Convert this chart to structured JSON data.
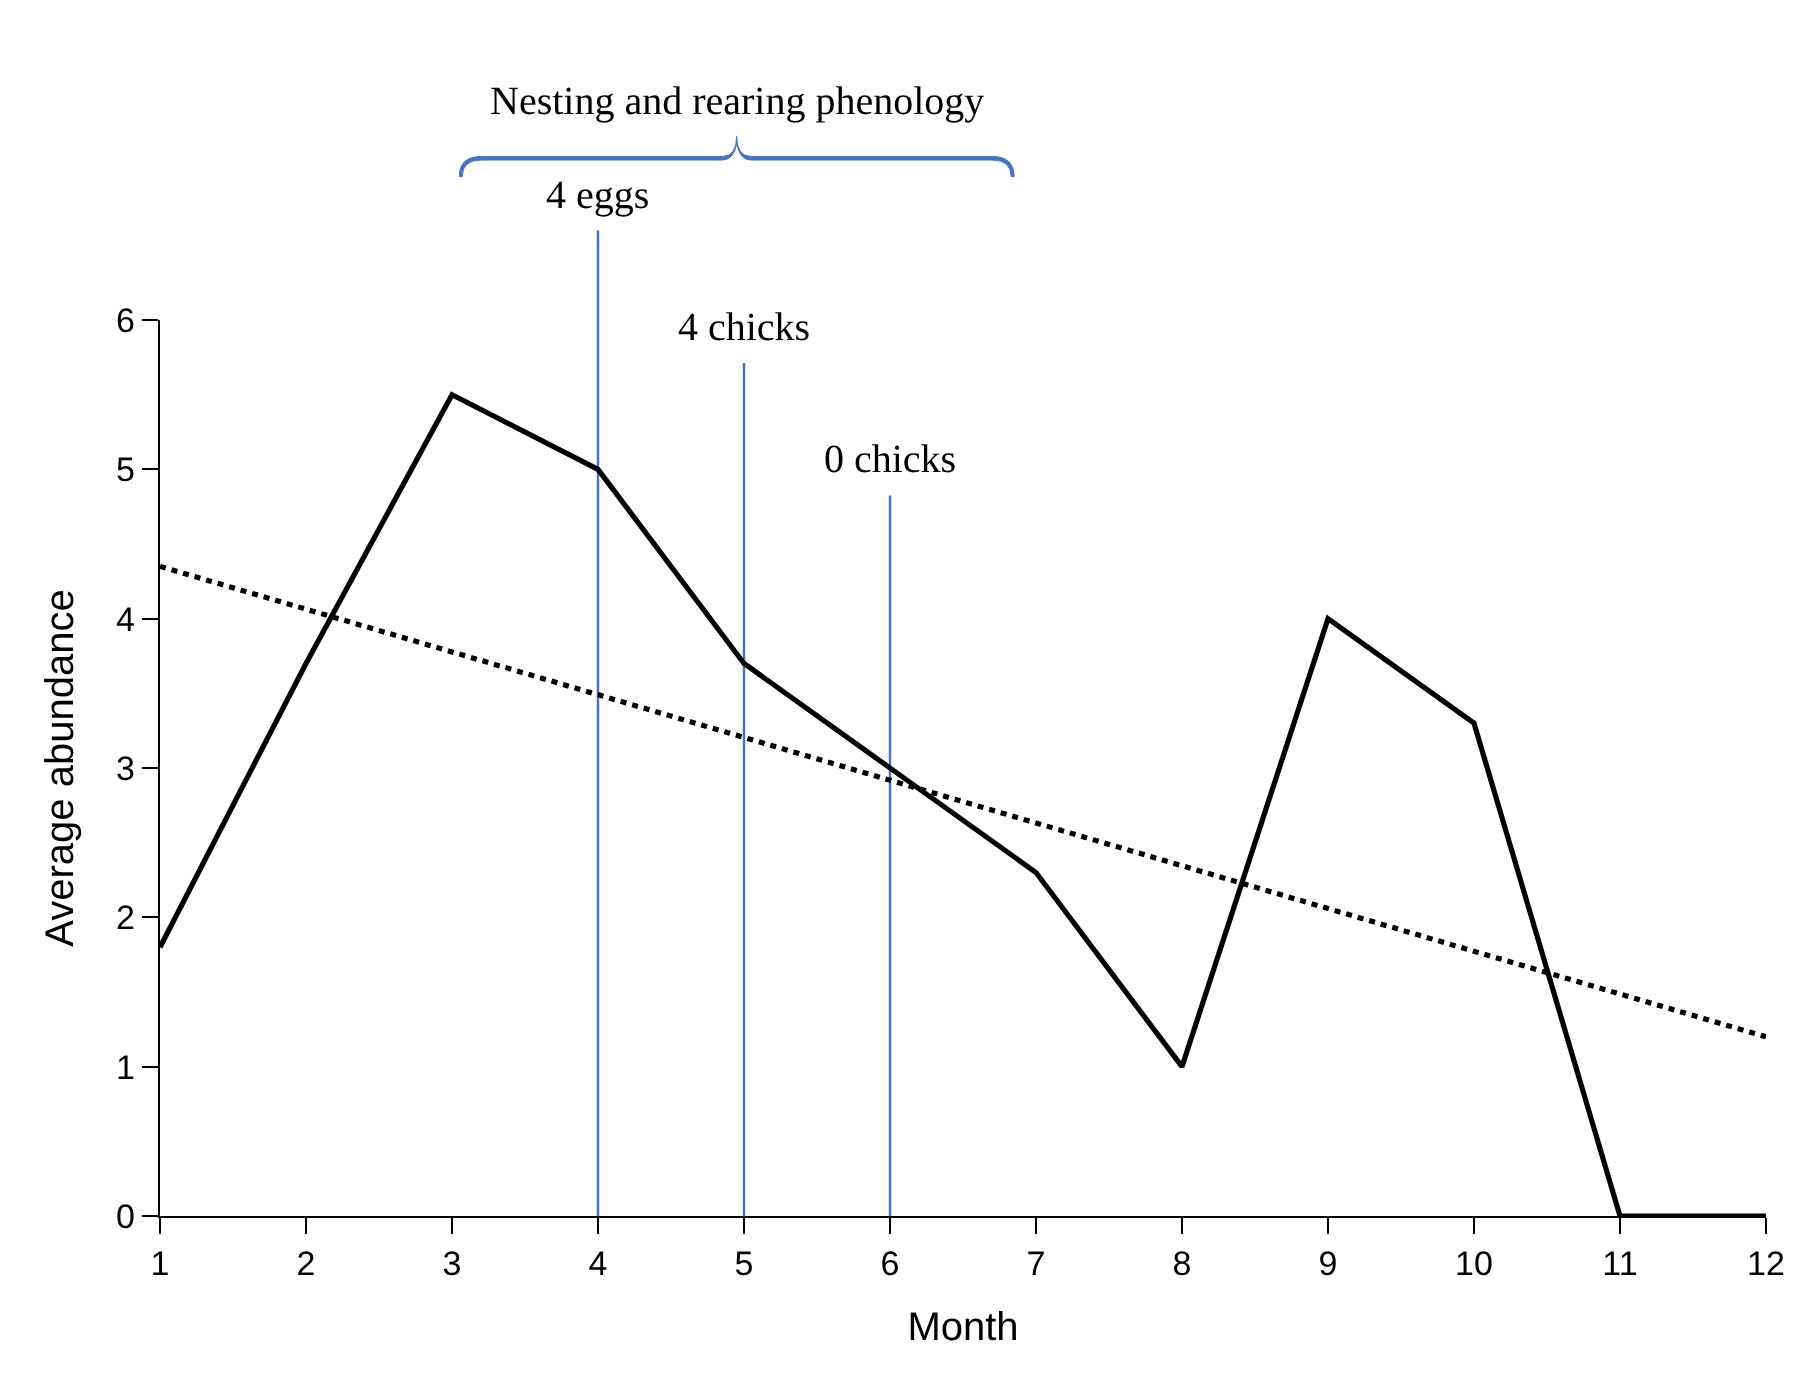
{
  "chart_data": {
    "type": "line",
    "xlabel": "Month",
    "ylabel": "Average abundance",
    "x": [
      1,
      2,
      3,
      4,
      5,
      6,
      7,
      8,
      9,
      10,
      11,
      12
    ],
    "series": [
      {
        "color": "#000000",
        "values": [
          1.8,
          3.7,
          5.5,
          5.0,
          3.7,
          3.0,
          2.3,
          1.0,
          4.0,
          3.3,
          0,
          0
        ],
        "line_style": "solid"
      },
      {
        "type": "line",
        "x": [
          1,
          12
        ],
        "color": "#000000",
        "values": [
          4.35,
          1.2
        ],
        "line_style": "dotted"
      }
    ],
    "xlim": [
      1,
      12
    ],
    "xticks": [
      1,
      2,
      3,
      4,
      5,
      6,
      7,
      8,
      9,
      10,
      11,
      12
    ],
    "ylim": [
      0,
      6
    ],
    "yticks": [
      0,
      1,
      2,
      3,
      4,
      5,
      6
    ],
    "ref_lines": [
      {
        "axis": "x",
        "value": 4,
        "label": "4 eggs",
        "color": "#4472c4"
      },
      {
        "axis": "x",
        "value": 5,
        "label": "4 chicks",
        "color": "#4472c4"
      },
      {
        "axis": "x",
        "value": 6,
        "label": "0 chicks",
        "color": "#4472c4"
      }
    ],
    "annotations": [
      "Nesting and rearing phenology"
    ],
    "grid": false,
    "marker": "none"
  }
}
